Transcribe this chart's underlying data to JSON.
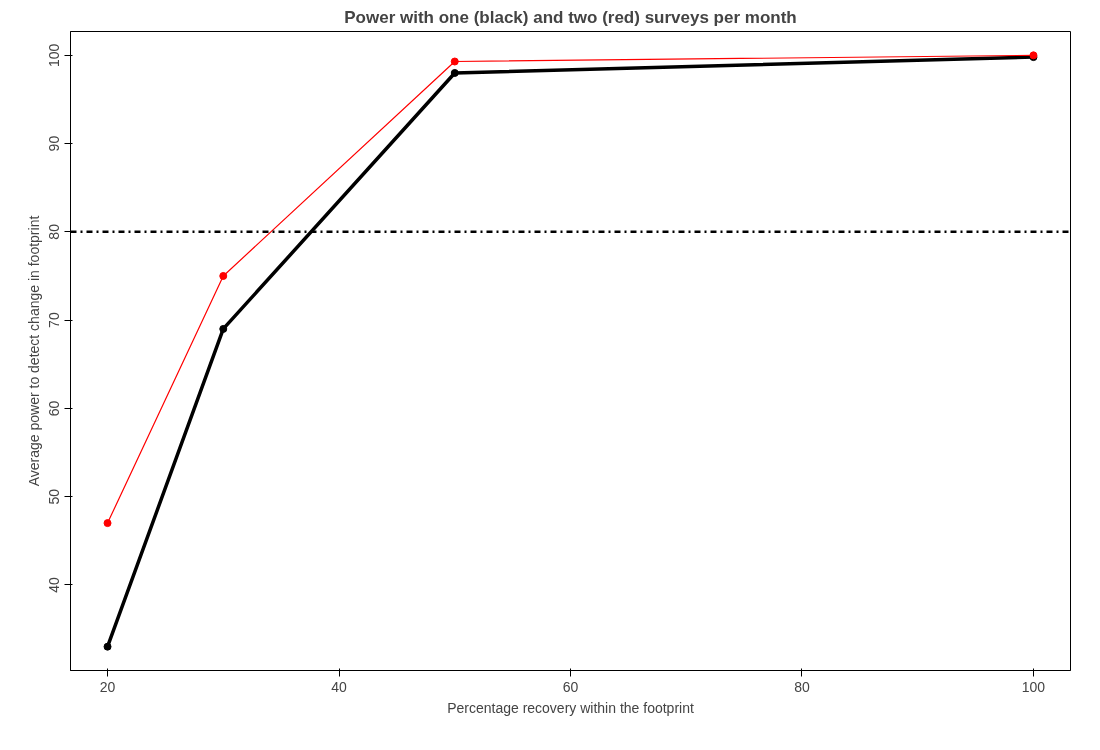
{
  "chart_data": {
    "type": "line",
    "title": "Power with one (black) and two (red) surveys per month",
    "xlabel": "Percentage recovery within the footprint",
    "ylabel": "Average power to detect change in footprint",
    "x": [
      20,
      30,
      50,
      100
    ],
    "series": [
      {
        "color": "#000000",
        "values": [
          33,
          69,
          98,
          99.8
        ]
      },
      {
        "color": "#ff0000",
        "values": [
          47,
          75,
          99.3,
          100
        ]
      }
    ],
    "xlim": [
      16.8,
      103.2
    ],
    "ylim": [
      30.3,
      102.7
    ],
    "xticks": [
      20,
      40,
      60,
      80,
      100
    ],
    "yticks": [
      40,
      50,
      60,
      70,
      80,
      90,
      100
    ],
    "ref_lines": [
      {
        "axis": "y",
        "value": 80,
        "color": "#000000",
        "line_style": "dashdot"
      }
    ],
    "grid": false,
    "marker": "circle"
  }
}
